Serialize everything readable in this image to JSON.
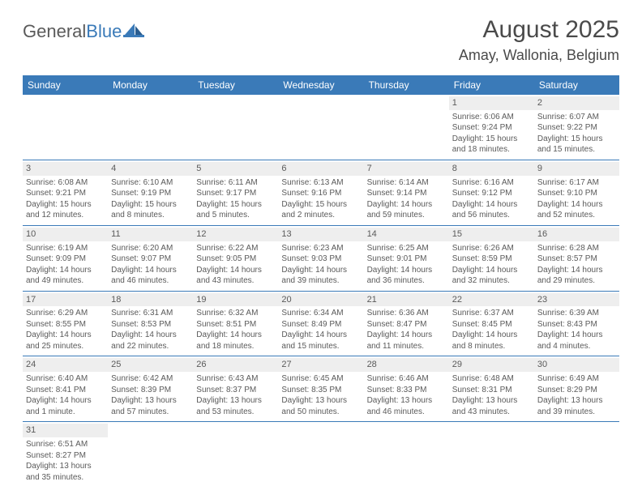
{
  "logo": {
    "part1": "General",
    "part2": "Blue"
  },
  "title": "August 2025",
  "location": "Amay, Wallonia, Belgium",
  "colors": {
    "accent": "#3a7ab8",
    "dayrow_bg": "#eeeeee",
    "text": "#4a4a4a",
    "background": "#ffffff"
  },
  "day_names": [
    "Sunday",
    "Monday",
    "Tuesday",
    "Wednesday",
    "Thursday",
    "Friday",
    "Saturday"
  ],
  "weeks": [
    [
      null,
      null,
      null,
      null,
      null,
      {
        "n": "1",
        "sr": "Sunrise: 6:06 AM",
        "ss": "Sunset: 9:24 PM",
        "dl": "Daylight: 15 hours and 18 minutes."
      },
      {
        "n": "2",
        "sr": "Sunrise: 6:07 AM",
        "ss": "Sunset: 9:22 PM",
        "dl": "Daylight: 15 hours and 15 minutes."
      }
    ],
    [
      {
        "n": "3",
        "sr": "Sunrise: 6:08 AM",
        "ss": "Sunset: 9:21 PM",
        "dl": "Daylight: 15 hours and 12 minutes."
      },
      {
        "n": "4",
        "sr": "Sunrise: 6:10 AM",
        "ss": "Sunset: 9:19 PM",
        "dl": "Daylight: 15 hours and 8 minutes."
      },
      {
        "n": "5",
        "sr": "Sunrise: 6:11 AM",
        "ss": "Sunset: 9:17 PM",
        "dl": "Daylight: 15 hours and 5 minutes."
      },
      {
        "n": "6",
        "sr": "Sunrise: 6:13 AM",
        "ss": "Sunset: 9:16 PM",
        "dl": "Daylight: 15 hours and 2 minutes."
      },
      {
        "n": "7",
        "sr": "Sunrise: 6:14 AM",
        "ss": "Sunset: 9:14 PM",
        "dl": "Daylight: 14 hours and 59 minutes."
      },
      {
        "n": "8",
        "sr": "Sunrise: 6:16 AM",
        "ss": "Sunset: 9:12 PM",
        "dl": "Daylight: 14 hours and 56 minutes."
      },
      {
        "n": "9",
        "sr": "Sunrise: 6:17 AM",
        "ss": "Sunset: 9:10 PM",
        "dl": "Daylight: 14 hours and 52 minutes."
      }
    ],
    [
      {
        "n": "10",
        "sr": "Sunrise: 6:19 AM",
        "ss": "Sunset: 9:09 PM",
        "dl": "Daylight: 14 hours and 49 minutes."
      },
      {
        "n": "11",
        "sr": "Sunrise: 6:20 AM",
        "ss": "Sunset: 9:07 PM",
        "dl": "Daylight: 14 hours and 46 minutes."
      },
      {
        "n": "12",
        "sr": "Sunrise: 6:22 AM",
        "ss": "Sunset: 9:05 PM",
        "dl": "Daylight: 14 hours and 43 minutes."
      },
      {
        "n": "13",
        "sr": "Sunrise: 6:23 AM",
        "ss": "Sunset: 9:03 PM",
        "dl": "Daylight: 14 hours and 39 minutes."
      },
      {
        "n": "14",
        "sr": "Sunrise: 6:25 AM",
        "ss": "Sunset: 9:01 PM",
        "dl": "Daylight: 14 hours and 36 minutes."
      },
      {
        "n": "15",
        "sr": "Sunrise: 6:26 AM",
        "ss": "Sunset: 8:59 PM",
        "dl": "Daylight: 14 hours and 32 minutes."
      },
      {
        "n": "16",
        "sr": "Sunrise: 6:28 AM",
        "ss": "Sunset: 8:57 PM",
        "dl": "Daylight: 14 hours and 29 minutes."
      }
    ],
    [
      {
        "n": "17",
        "sr": "Sunrise: 6:29 AM",
        "ss": "Sunset: 8:55 PM",
        "dl": "Daylight: 14 hours and 25 minutes."
      },
      {
        "n": "18",
        "sr": "Sunrise: 6:31 AM",
        "ss": "Sunset: 8:53 PM",
        "dl": "Daylight: 14 hours and 22 minutes."
      },
      {
        "n": "19",
        "sr": "Sunrise: 6:32 AM",
        "ss": "Sunset: 8:51 PM",
        "dl": "Daylight: 14 hours and 18 minutes."
      },
      {
        "n": "20",
        "sr": "Sunrise: 6:34 AM",
        "ss": "Sunset: 8:49 PM",
        "dl": "Daylight: 14 hours and 15 minutes."
      },
      {
        "n": "21",
        "sr": "Sunrise: 6:36 AM",
        "ss": "Sunset: 8:47 PM",
        "dl": "Daylight: 14 hours and 11 minutes."
      },
      {
        "n": "22",
        "sr": "Sunrise: 6:37 AM",
        "ss": "Sunset: 8:45 PM",
        "dl": "Daylight: 14 hours and 8 minutes."
      },
      {
        "n": "23",
        "sr": "Sunrise: 6:39 AM",
        "ss": "Sunset: 8:43 PM",
        "dl": "Daylight: 14 hours and 4 minutes."
      }
    ],
    [
      {
        "n": "24",
        "sr": "Sunrise: 6:40 AM",
        "ss": "Sunset: 8:41 PM",
        "dl": "Daylight: 14 hours and 1 minute."
      },
      {
        "n": "25",
        "sr": "Sunrise: 6:42 AM",
        "ss": "Sunset: 8:39 PM",
        "dl": "Daylight: 13 hours and 57 minutes."
      },
      {
        "n": "26",
        "sr": "Sunrise: 6:43 AM",
        "ss": "Sunset: 8:37 PM",
        "dl": "Daylight: 13 hours and 53 minutes."
      },
      {
        "n": "27",
        "sr": "Sunrise: 6:45 AM",
        "ss": "Sunset: 8:35 PM",
        "dl": "Daylight: 13 hours and 50 minutes."
      },
      {
        "n": "28",
        "sr": "Sunrise: 6:46 AM",
        "ss": "Sunset: 8:33 PM",
        "dl": "Daylight: 13 hours and 46 minutes."
      },
      {
        "n": "29",
        "sr": "Sunrise: 6:48 AM",
        "ss": "Sunset: 8:31 PM",
        "dl": "Daylight: 13 hours and 43 minutes."
      },
      {
        "n": "30",
        "sr": "Sunrise: 6:49 AM",
        "ss": "Sunset: 8:29 PM",
        "dl": "Daylight: 13 hours and 39 minutes."
      }
    ],
    [
      {
        "n": "31",
        "sr": "Sunrise: 6:51 AM",
        "ss": "Sunset: 8:27 PM",
        "dl": "Daylight: 13 hours and 35 minutes."
      },
      null,
      null,
      null,
      null,
      null,
      null
    ]
  ]
}
